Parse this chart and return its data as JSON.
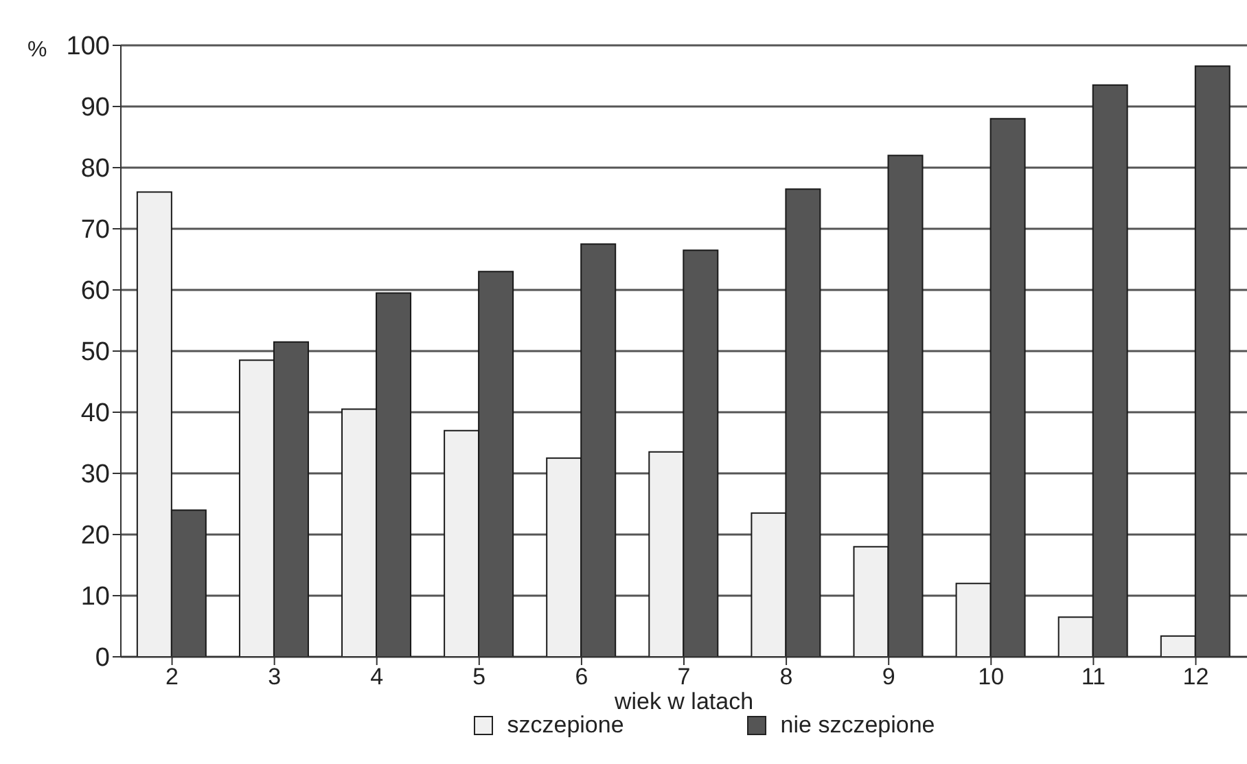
{
  "chart_data": {
    "type": "bar",
    "xlabel": "wiek w latach",
    "ylabel": "%",
    "categories": [
      "2",
      "3",
      "4",
      "5",
      "6",
      "7",
      "8",
      "9",
      "10",
      "11",
      "12"
    ],
    "series": [
      {
        "name": "szczepione",
        "color": "#f0f0f0",
        "values": [
          76,
          48.5,
          40.5,
          37,
          32.5,
          33.5,
          23.5,
          18,
          12,
          6.5,
          3.4
        ]
      },
      {
        "name": "nie szczepione",
        "color": "#555555",
        "values": [
          24,
          51.5,
          59.5,
          63,
          67.5,
          66.5,
          76.5,
          82,
          88,
          93.5,
          96.6
        ]
      }
    ],
    "ylim": [
      0,
      100
    ],
    "yticks": [
      0,
      10,
      20,
      30,
      40,
      50,
      60,
      70,
      80,
      90,
      100
    ],
    "grid": "y",
    "legend": "bottom"
  }
}
